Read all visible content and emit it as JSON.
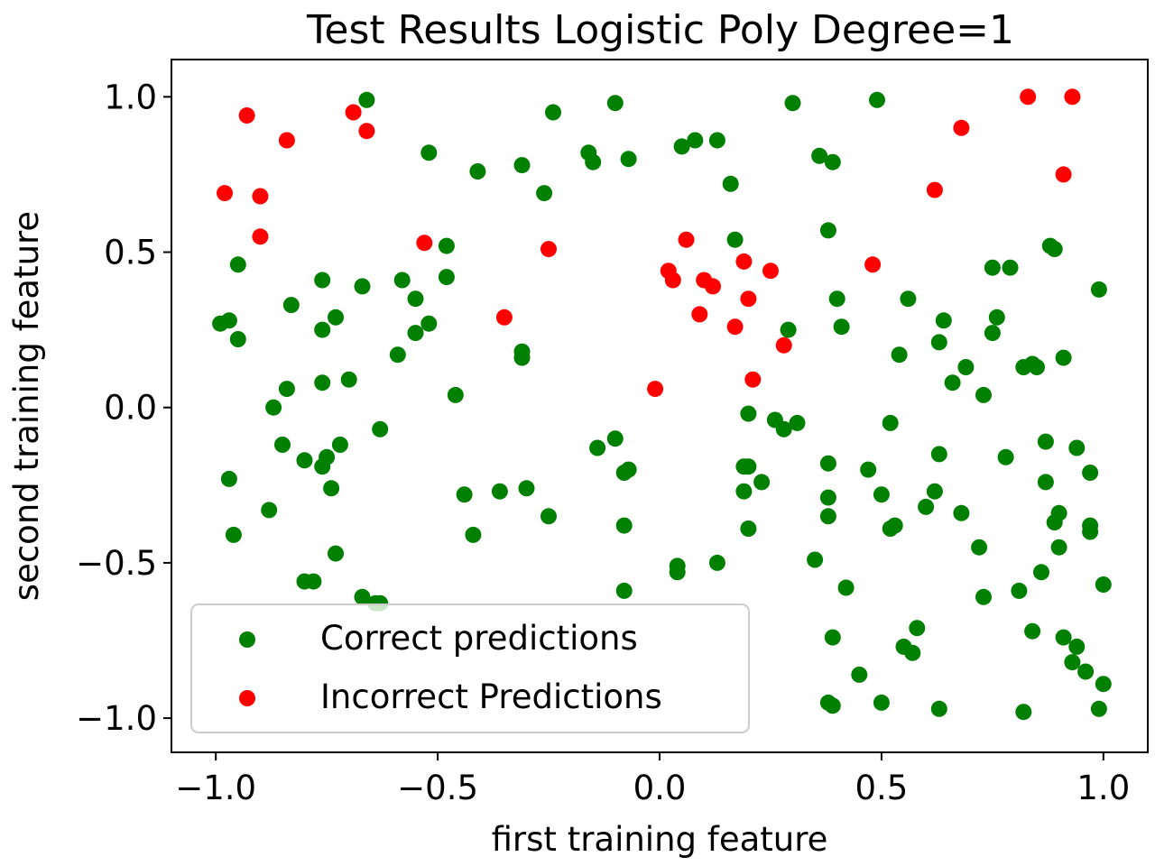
{
  "chart_data": {
    "type": "scatter",
    "title": "Test Results Logistic Poly Degree=1",
    "xlabel": "first training feature",
    "ylabel": "second training feature",
    "xlim": [
      -1.1,
      1.1
    ],
    "ylim": [
      -1.11,
      1.12
    ],
    "xticks": [
      -1.0,
      -0.5,
      0.0,
      0.5,
      1.0
    ],
    "yticks": [
      -1.0,
      -0.5,
      0.0,
      0.5,
      1.0
    ],
    "xtick_labels": [
      "−1.0",
      "−0.5",
      "0.0",
      "0.5",
      "1.0"
    ],
    "ytick_labels": [
      "−1.0",
      "−0.5",
      "0.0",
      "0.5",
      "1.0"
    ],
    "grid": false,
    "legend": {
      "placement": "lower-left"
    },
    "series": [
      {
        "name": "Correct predictions",
        "color": "#008000",
        "points": [
          [
            -0.66,
            0.99
          ],
          [
            -0.52,
            0.82
          ],
          [
            -0.41,
            0.76
          ],
          [
            -0.31,
            0.78
          ],
          [
            -0.24,
            0.95
          ],
          [
            -0.26,
            0.69
          ],
          [
            -0.15,
            0.79
          ],
          [
            -0.16,
            0.82
          ],
          [
            -0.1,
            0.98
          ],
          [
            -0.07,
            0.8
          ],
          [
            0.05,
            0.84
          ],
          [
            0.08,
            0.86
          ],
          [
            0.13,
            0.86
          ],
          [
            0.16,
            0.72
          ],
          [
            0.3,
            0.98
          ],
          [
            0.36,
            0.81
          ],
          [
            0.39,
            0.79
          ],
          [
            0.49,
            0.99
          ],
          [
            0.17,
            0.54
          ],
          [
            0.38,
            0.57
          ],
          [
            0.4,
            0.35
          ],
          [
            0.41,
            0.26
          ],
          [
            0.29,
            0.25
          ],
          [
            0.56,
            0.35
          ],
          [
            0.54,
            0.17
          ],
          [
            0.63,
            0.21
          ],
          [
            0.64,
            0.28
          ],
          [
            0.69,
            0.13
          ],
          [
            0.66,
            0.08
          ],
          [
            0.73,
            0.04
          ],
          [
            0.75,
            0.45
          ],
          [
            0.79,
            0.45
          ],
          [
            0.76,
            0.29
          ],
          [
            0.75,
            0.24
          ],
          [
            0.88,
            0.52
          ],
          [
            0.89,
            0.51
          ],
          [
            0.99,
            0.38
          ],
          [
            0.82,
            0.13
          ],
          [
            0.84,
            0.14
          ],
          [
            0.85,
            0.13
          ],
          [
            0.91,
            0.16
          ],
          [
            -0.99,
            0.27
          ],
          [
            -0.97,
            0.28
          ],
          [
            -0.95,
            0.46
          ],
          [
            -0.95,
            0.22
          ],
          [
            -0.83,
            0.33
          ],
          [
            -0.76,
            0.41
          ],
          [
            -0.76,
            0.25
          ],
          [
            -0.73,
            0.29
          ],
          [
            -0.67,
            0.39
          ],
          [
            -0.58,
            0.41
          ],
          [
            -0.55,
            0.35
          ],
          [
            -0.48,
            0.52
          ],
          [
            -0.48,
            0.42
          ],
          [
            -0.52,
            0.27
          ],
          [
            -0.55,
            0.24
          ],
          [
            -0.59,
            0.17
          ],
          [
            -0.31,
            0.18
          ],
          [
            -0.31,
            0.16
          ],
          [
            -0.76,
            0.08
          ],
          [
            -0.7,
            0.09
          ],
          [
            -0.84,
            0.06
          ],
          [
            -0.87,
            0.0
          ],
          [
            -0.46,
            0.04
          ],
          [
            -0.63,
            -0.07
          ],
          [
            -0.85,
            -0.12
          ],
          [
            -0.8,
            -0.17
          ],
          [
            -0.75,
            -0.16
          ],
          [
            -0.76,
            -0.19
          ],
          [
            -0.72,
            -0.12
          ],
          [
            -0.74,
            -0.26
          ],
          [
            -0.97,
            -0.23
          ],
          [
            -0.96,
            -0.41
          ],
          [
            -0.88,
            -0.33
          ],
          [
            -0.73,
            -0.47
          ],
          [
            -0.8,
            -0.56
          ],
          [
            -0.78,
            -0.56
          ],
          [
            -0.67,
            -0.61
          ],
          [
            -0.64,
            -0.63
          ],
          [
            -0.63,
            -0.63
          ],
          [
            -0.44,
            -0.28
          ],
          [
            -0.42,
            -0.41
          ],
          [
            -0.36,
            -0.27
          ],
          [
            -0.3,
            -0.26
          ],
          [
            -0.25,
            -0.35
          ],
          [
            -0.14,
            -0.13
          ],
          [
            -0.1,
            -0.1
          ],
          [
            -0.08,
            -0.21
          ],
          [
            -0.07,
            -0.2
          ],
          [
            -0.08,
            -0.38
          ],
          [
            -0.08,
            -0.59
          ],
          [
            0.04,
            -0.51
          ],
          [
            0.04,
            -0.53
          ],
          [
            0.13,
            -0.5
          ],
          [
            0.19,
            -0.19
          ],
          [
            0.2,
            -0.19
          ],
          [
            0.19,
            -0.27
          ],
          [
            0.23,
            -0.24
          ],
          [
            0.2,
            -0.39
          ],
          [
            0.2,
            -0.02
          ],
          [
            0.26,
            -0.04
          ],
          [
            0.28,
            -0.07
          ],
          [
            0.31,
            -0.05
          ],
          [
            0.38,
            -0.18
          ],
          [
            0.38,
            -0.29
          ],
          [
            0.38,
            -0.35
          ],
          [
            0.35,
            -0.49
          ],
          [
            0.42,
            -0.58
          ],
          [
            0.39,
            -0.74
          ],
          [
            0.45,
            -0.86
          ],
          [
            0.38,
            -0.95
          ],
          [
            0.39,
            -0.96
          ],
          [
            0.5,
            -0.95
          ],
          [
            0.47,
            -0.2
          ],
          [
            0.5,
            -0.28
          ],
          [
            0.52,
            -0.05
          ],
          [
            0.52,
            -0.39
          ],
          [
            0.53,
            -0.38
          ],
          [
            0.55,
            -0.77
          ],
          [
            0.57,
            -0.79
          ],
          [
            0.58,
            -0.71
          ],
          [
            0.6,
            -0.32
          ],
          [
            0.62,
            -0.27
          ],
          [
            0.63,
            -0.15
          ],
          [
            0.68,
            -0.34
          ],
          [
            0.63,
            -0.97
          ],
          [
            0.72,
            -0.45
          ],
          [
            0.73,
            -0.61
          ],
          [
            0.78,
            -0.16
          ],
          [
            0.81,
            -0.59
          ],
          [
            0.82,
            -0.98
          ],
          [
            0.84,
            -0.72
          ],
          [
            0.86,
            -0.53
          ],
          [
            0.87,
            -0.24
          ],
          [
            0.87,
            -0.11
          ],
          [
            0.89,
            -0.37
          ],
          [
            0.9,
            -0.34
          ],
          [
            0.9,
            -0.45
          ],
          [
            0.91,
            -0.74
          ],
          [
            0.93,
            -0.82
          ],
          [
            0.94,
            -0.77
          ],
          [
            0.94,
            -0.13
          ],
          [
            0.96,
            -0.85
          ],
          [
            0.97,
            -0.21
          ],
          [
            0.97,
            -0.38
          ],
          [
            0.97,
            -0.4
          ],
          [
            0.99,
            -0.97
          ],
          [
            1.0,
            -0.57
          ],
          [
            1.0,
            -0.89
          ]
        ]
      },
      {
        "name": "Incorrect Predictions",
        "color": "#ff0000",
        "points": [
          [
            -0.98,
            0.69
          ],
          [
            -0.93,
            0.94
          ],
          [
            -0.9,
            0.68
          ],
          [
            -0.9,
            0.55
          ],
          [
            -0.84,
            0.86
          ],
          [
            -0.69,
            0.95
          ],
          [
            -0.66,
            0.89
          ],
          [
            -0.53,
            0.53
          ],
          [
            -0.35,
            0.29
          ],
          [
            -0.25,
            0.51
          ],
          [
            -0.01,
            0.06
          ],
          [
            0.02,
            0.44
          ],
          [
            0.03,
            0.41
          ],
          [
            0.06,
            0.54
          ],
          [
            0.09,
            0.3
          ],
          [
            0.1,
            0.41
          ],
          [
            0.12,
            0.39
          ],
          [
            0.17,
            0.26
          ],
          [
            0.19,
            0.47
          ],
          [
            0.2,
            0.35
          ],
          [
            0.21,
            0.09
          ],
          [
            0.25,
            0.44
          ],
          [
            0.28,
            0.2
          ],
          [
            0.48,
            0.46
          ],
          [
            0.62,
            0.7
          ],
          [
            0.68,
            0.9
          ],
          [
            0.83,
            1.0
          ],
          [
            0.91,
            0.75
          ],
          [
            0.93,
            1.0
          ]
        ]
      }
    ]
  }
}
